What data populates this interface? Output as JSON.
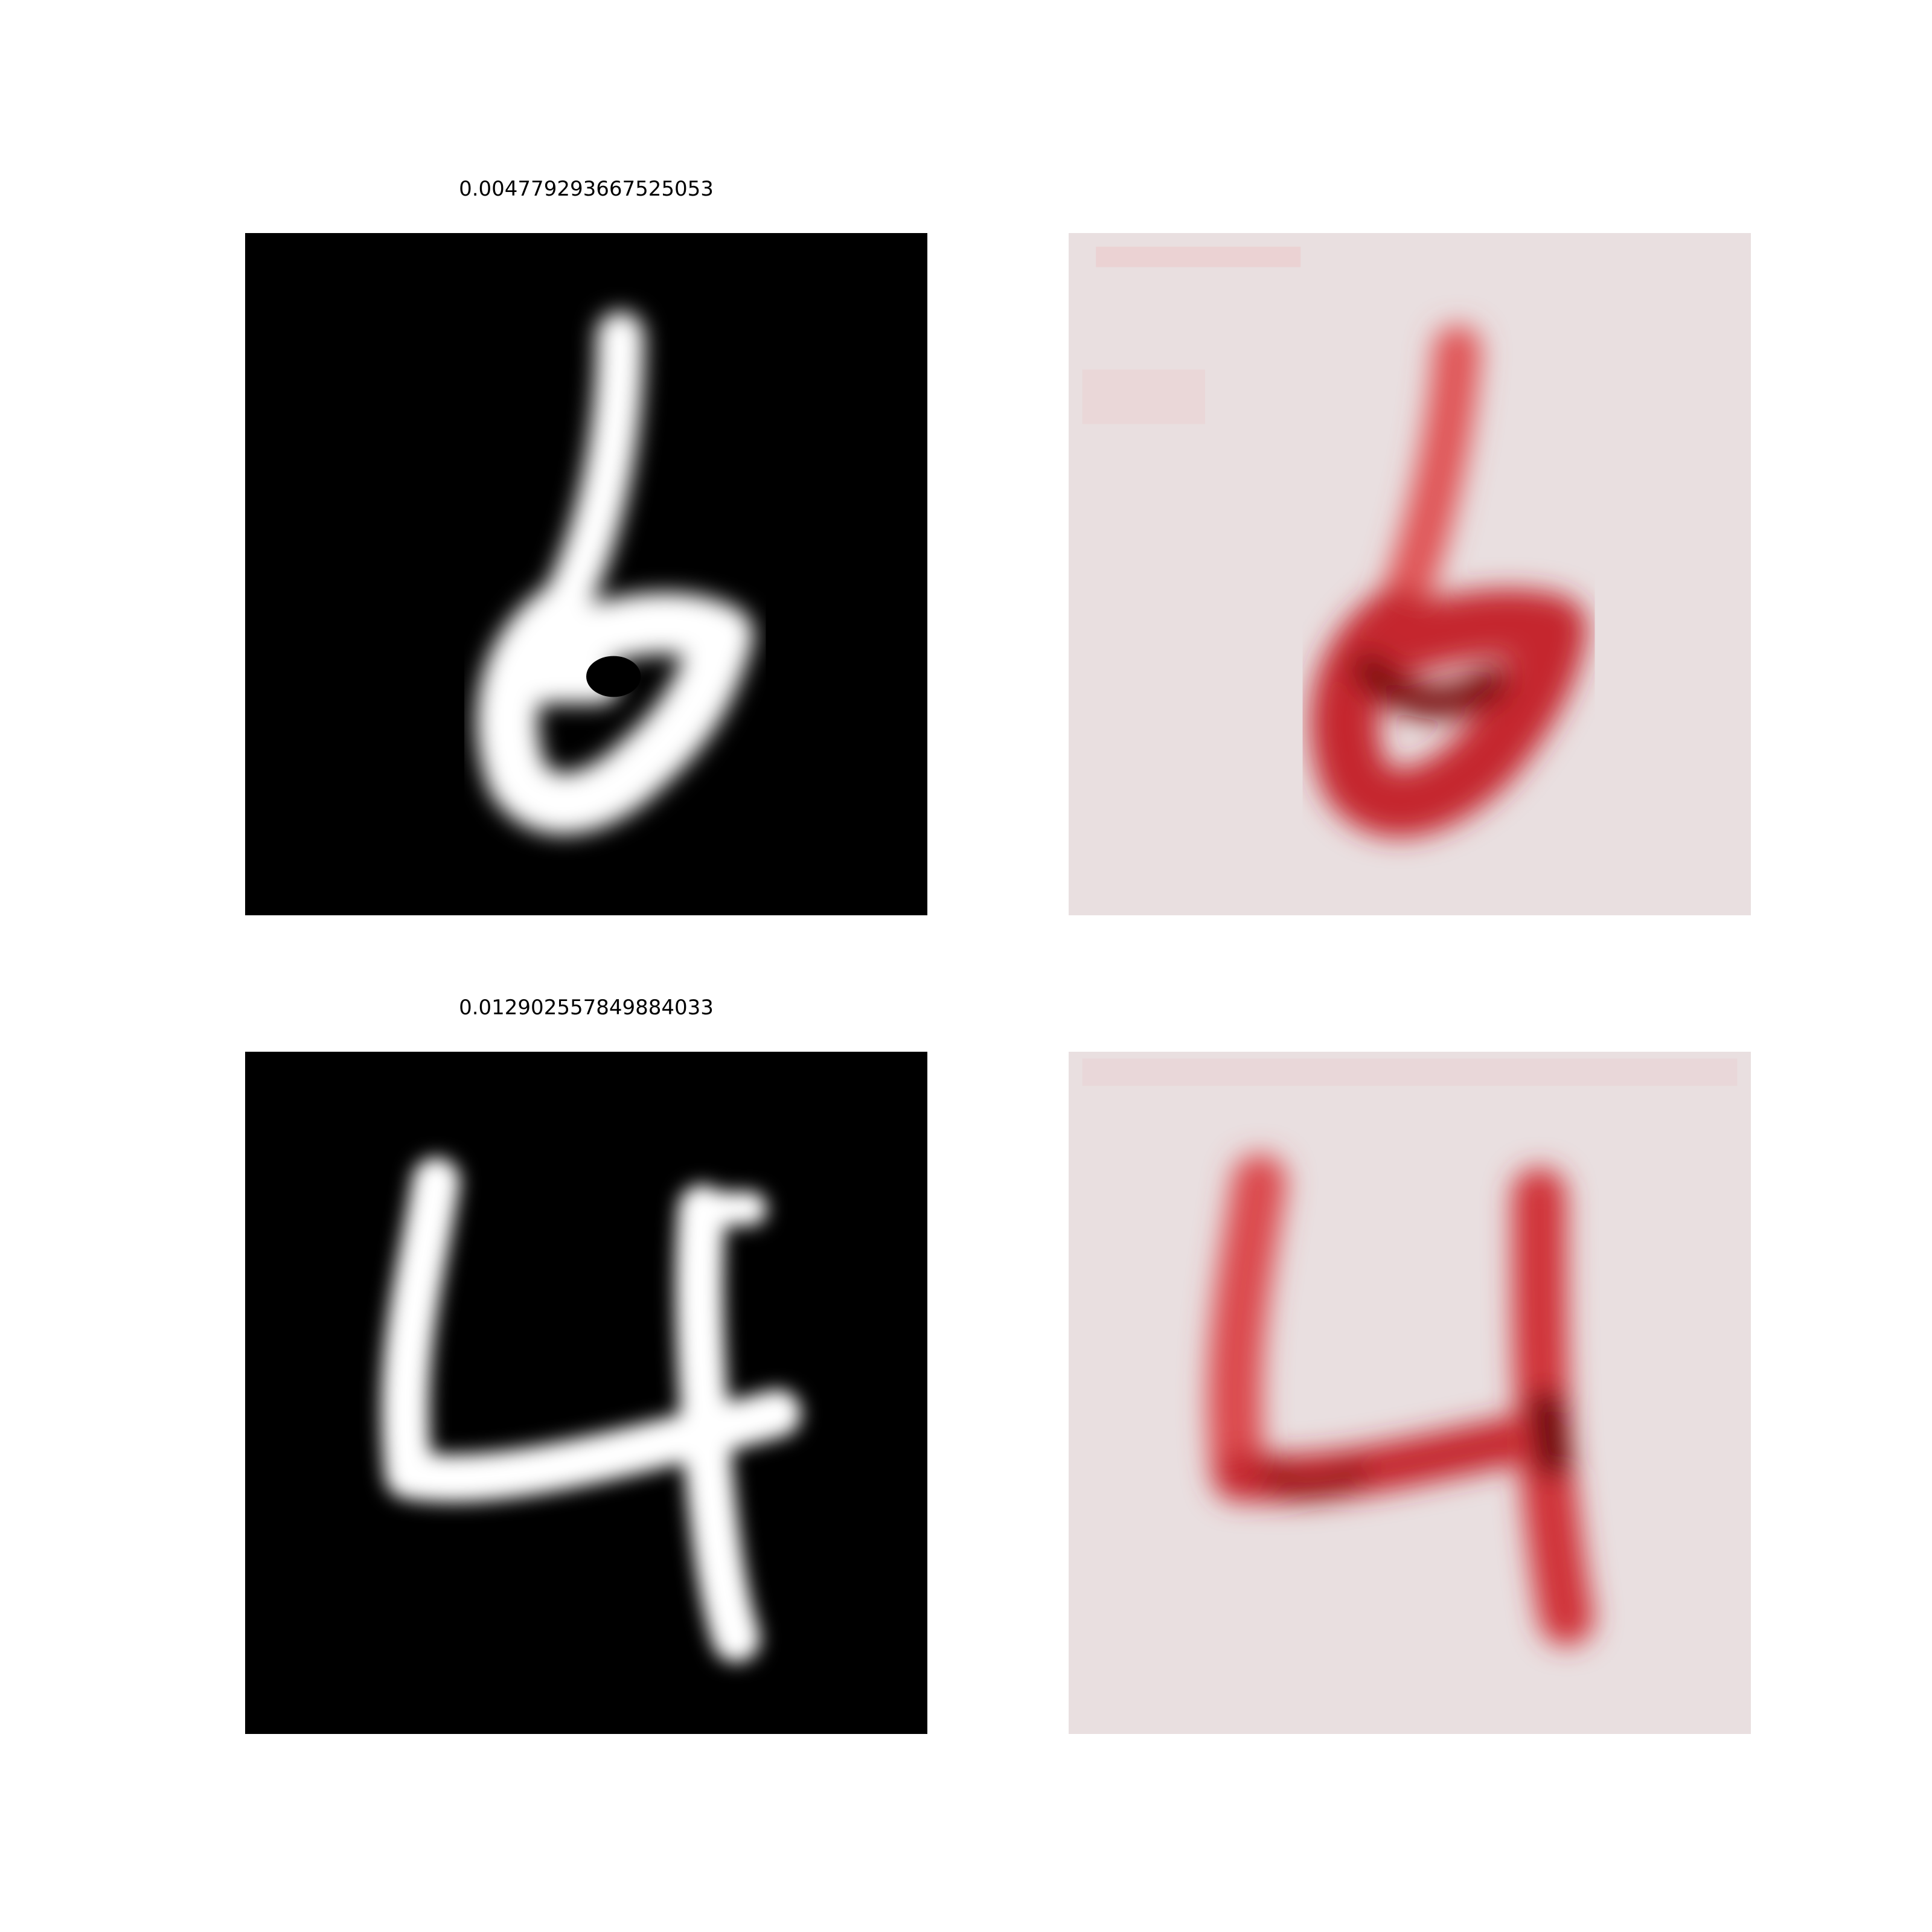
{
  "panels": [
    {
      "title": "0.004779293667525053",
      "digit_image": "handwritten-digit-six",
      "heatmap": "relevance-heatmap-six",
      "heatmap_color": "#c8141b"
    },
    {
      "title": "0.012902557849884033",
      "digit_image": "handwritten-digit-four",
      "heatmap": "relevance-heatmap-four",
      "heatmap_color": "#c8141b"
    }
  ]
}
